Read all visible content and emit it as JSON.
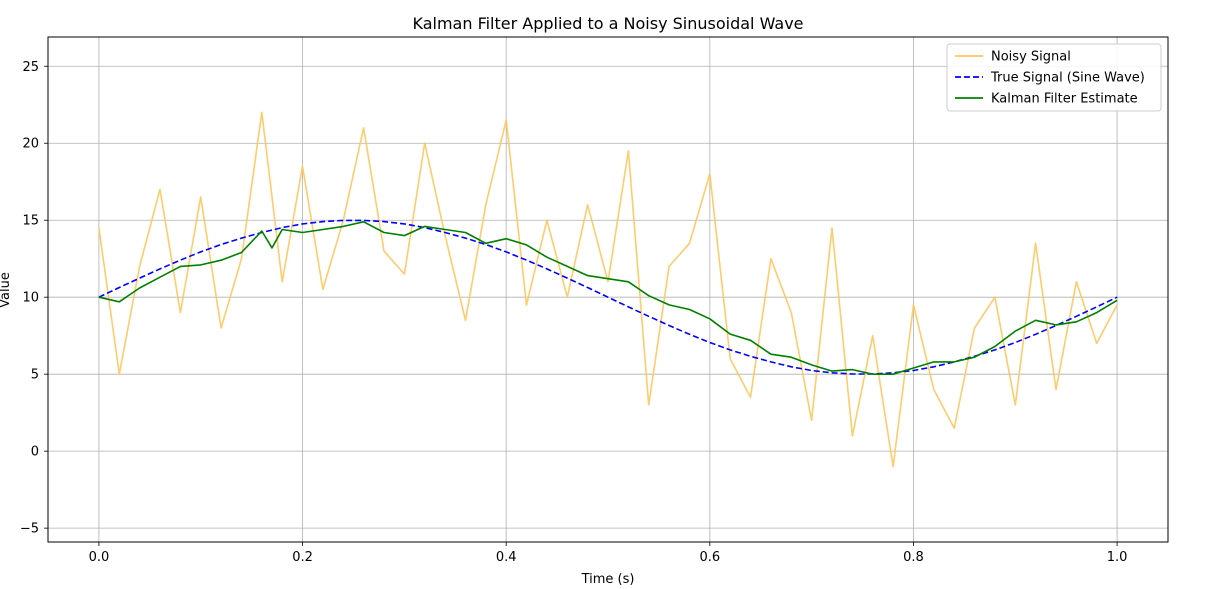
{
  "chart_data": {
    "type": "line",
    "title": "Kalman Filter Applied to a Noisy Sinusoidal Wave",
    "xlabel": "Time (s)",
    "ylabel": "Value",
    "xlim": [
      -0.05,
      1.05
    ],
    "ylim": [
      -5.9,
      26.9
    ],
    "xticks": [
      0.0,
      0.2,
      0.4,
      0.6,
      0.8,
      1.0
    ],
    "xtick_labels": [
      "0.0",
      "0.2",
      "0.4",
      "0.6",
      "0.8",
      "1.0"
    ],
    "yticks": [
      -5,
      0,
      5,
      10,
      15,
      20,
      25
    ],
    "ytick_labels": [
      "−5",
      "0",
      "5",
      "10",
      "15",
      "20",
      "25"
    ],
    "grid": true,
    "legend_position": "upper right",
    "series": [
      {
        "name": "Noisy Signal",
        "color": "#FFC55C",
        "style": "solid",
        "x": [
          0.0,
          0.02,
          0.04,
          0.06,
          0.08,
          0.1,
          0.12,
          0.14,
          0.16,
          0.18,
          0.2,
          0.22,
          0.24,
          0.26,
          0.28,
          0.3,
          0.32,
          0.34,
          0.36,
          0.38,
          0.4,
          0.42,
          0.44,
          0.46,
          0.48,
          0.5,
          0.52,
          0.54,
          0.56,
          0.58,
          0.6,
          0.62,
          0.64,
          0.66,
          0.68,
          0.7,
          0.72,
          0.74,
          0.76,
          0.78,
          0.8,
          0.82,
          0.84,
          0.86,
          0.88,
          0.9,
          0.92,
          0.94,
          0.96,
          0.98,
          1.0
        ],
        "y": [
          14.5,
          5.0,
          12.0,
          17.0,
          9.0,
          16.5,
          8.0,
          12.5,
          22.0,
          11.0,
          18.5,
          10.5,
          15.0,
          21.0,
          13.0,
          11.5,
          20.0,
          14.0,
          8.5,
          16.0,
          21.5,
          9.5,
          15.0,
          10.0,
          16.0,
          11.0,
          19.5,
          3.0,
          12.0,
          13.5,
          18.0,
          6.0,
          3.5,
          12.5,
          9.0,
          2.0,
          14.5,
          1.0,
          7.5,
          -1.0,
          9.5,
          4.0,
          1.5,
          8.0,
          10.0,
          3.0,
          13.5,
          4.0,
          11.0,
          7.0,
          9.5
        ]
      },
      {
        "name": "True Signal (Sine Wave)",
        "color": "#0000FF",
        "style": "dashed",
        "x": [
          0.0,
          0.02,
          0.04,
          0.06,
          0.08,
          0.1,
          0.12,
          0.14,
          0.16,
          0.18,
          0.2,
          0.22,
          0.24,
          0.26,
          0.28,
          0.3,
          0.32,
          0.34,
          0.36,
          0.38,
          0.4,
          0.42,
          0.44,
          0.46,
          0.48,
          0.5,
          0.52,
          0.54,
          0.56,
          0.58,
          0.6,
          0.62,
          0.64,
          0.66,
          0.68,
          0.7,
          0.72,
          0.74,
          0.76,
          0.78,
          0.8,
          0.82,
          0.84,
          0.86,
          0.88,
          0.9,
          0.92,
          0.94,
          0.96,
          0.98,
          1.0
        ],
        "y": [
          10.0,
          10.63,
          11.24,
          11.84,
          12.41,
          12.94,
          13.42,
          13.84,
          14.2,
          14.52,
          14.76,
          14.91,
          14.99,
          14.99,
          14.91,
          14.76,
          14.52,
          14.2,
          13.84,
          13.42,
          12.94,
          12.41,
          11.84,
          11.24,
          10.63,
          10.0,
          9.37,
          8.76,
          8.16,
          7.59,
          7.06,
          6.58,
          6.16,
          5.8,
          5.48,
          5.24,
          5.09,
          5.01,
          5.01,
          5.09,
          5.24,
          5.48,
          5.8,
          6.16,
          6.58,
          7.06,
          7.59,
          8.16,
          8.76,
          9.37,
          10.0
        ]
      },
      {
        "name": "Kalman Filter Estimate",
        "color": "#008000",
        "style": "solid",
        "x": [
          0.0,
          0.02,
          0.04,
          0.06,
          0.08,
          0.1,
          0.12,
          0.14,
          0.16,
          0.17,
          0.18,
          0.2,
          0.22,
          0.24,
          0.26,
          0.28,
          0.3,
          0.32,
          0.34,
          0.36,
          0.38,
          0.4,
          0.42,
          0.44,
          0.46,
          0.48,
          0.5,
          0.52,
          0.54,
          0.56,
          0.58,
          0.6,
          0.62,
          0.64,
          0.66,
          0.68,
          0.7,
          0.72,
          0.74,
          0.76,
          0.78,
          0.8,
          0.82,
          0.84,
          0.86,
          0.88,
          0.9,
          0.92,
          0.94,
          0.96,
          0.98,
          1.0
        ],
        "y": [
          10.0,
          9.7,
          10.6,
          11.3,
          12.0,
          12.1,
          12.4,
          12.9,
          14.3,
          13.2,
          14.4,
          14.2,
          14.4,
          14.6,
          14.9,
          14.2,
          14.0,
          14.6,
          14.4,
          14.2,
          13.5,
          13.8,
          13.4,
          12.6,
          12.0,
          11.4,
          11.2,
          11.0,
          10.1,
          9.5,
          9.2,
          8.6,
          7.6,
          7.2,
          6.3,
          6.1,
          5.6,
          5.2,
          5.3,
          5.0,
          5.0,
          5.4,
          5.8,
          5.8,
          6.1,
          6.8,
          7.8,
          8.5,
          8.2,
          8.4,
          9.0,
          9.8
        ]
      }
    ]
  }
}
